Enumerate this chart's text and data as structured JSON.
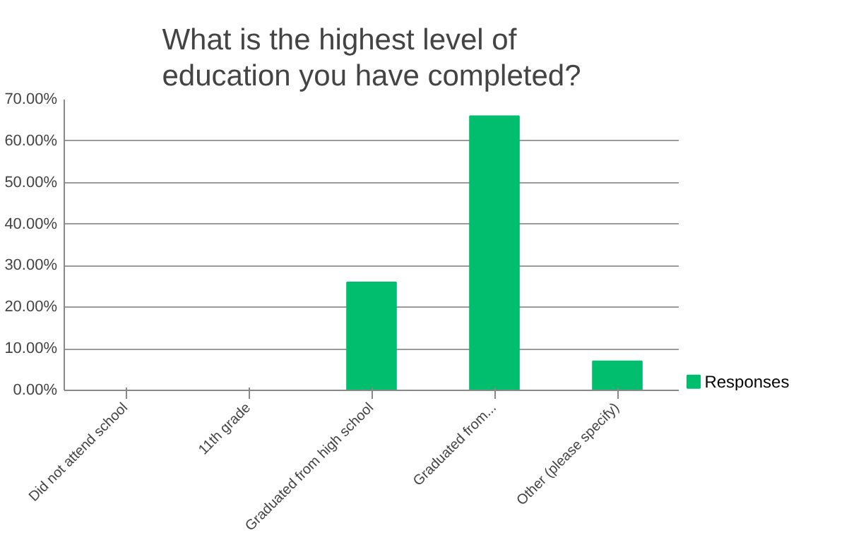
{
  "chart_data": {
    "type": "bar",
    "title": "What is the highest level of education you have completed?",
    "categories": [
      "Did not attend school",
      "11th grade",
      "Graduated from high school",
      "Graduated from...",
      "Other (please specify)"
    ],
    "series": [
      {
        "name": "Responses",
        "color": "#00be6e",
        "values": [
          0,
          0,
          26,
          66,
          7
        ]
      }
    ],
    "ylim": [
      0,
      70
    ],
    "yticks": [
      {
        "value": 0,
        "label": "0.00%"
      },
      {
        "value": 10,
        "label": "10.00%"
      },
      {
        "value": 20,
        "label": "20.00%"
      },
      {
        "value": 30,
        "label": "30.00%"
      },
      {
        "value": 40,
        "label": "40.00%"
      },
      {
        "value": 50,
        "label": "50.00%"
      },
      {
        "value": 60,
        "label": "60.00%"
      },
      {
        "value": 70,
        "label": "70.00%"
      }
    ],
    "grid": "y",
    "legend": "right"
  }
}
